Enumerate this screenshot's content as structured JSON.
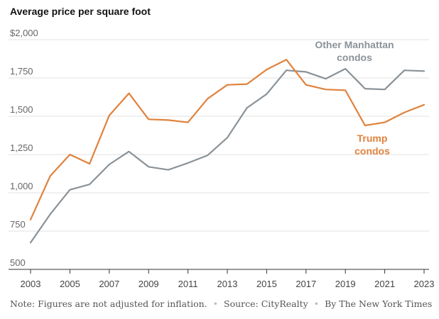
{
  "chart_data": {
    "type": "line",
    "title": "Average price per square foot",
    "x": [
      2003,
      2004,
      2005,
      2006,
      2007,
      2008,
      2009,
      2010,
      2011,
      2012,
      2013,
      2014,
      2015,
      2016,
      2017,
      2018,
      2019,
      2020,
      2021,
      2022,
      2023
    ],
    "series": [
      {
        "name": "Other Manhattan condos",
        "color": "#8a9298",
        "values": [
          675,
          860,
          1020,
          1055,
          1185,
          1270,
          1170,
          1150,
          1195,
          1245,
          1360,
          1555,
          1645,
          1800,
          1790,
          1745,
          1810,
          1680,
          1675,
          1800,
          1795
        ]
      },
      {
        "name": "Trump condos",
        "color": "#e0823c",
        "values": [
          825,
          1110,
          1250,
          1190,
          1505,
          1650,
          1480,
          1475,
          1460,
          1615,
          1705,
          1710,
          1805,
          1870,
          1705,
          1675,
          1670,
          1440,
          1460,
          1525,
          1575
        ]
      }
    ],
    "series_labels": [
      {
        "lines": [
          "Other Manhattan",
          "condos"
        ],
        "color": "#8a9298"
      },
      {
        "lines": [
          "Trump",
          "condos"
        ],
        "color": "#e0823c"
      }
    ],
    "ylim": [
      500,
      2000
    ],
    "yticks": [
      "500",
      "750",
      "1,000",
      "1,250",
      "1,500",
      "1,750",
      "$2,000"
    ],
    "ytick_values": [
      500,
      750,
      1000,
      1250,
      1500,
      1750,
      2000
    ],
    "xticks": [
      "2003",
      "2005",
      "2007",
      "2009",
      "2011",
      "2013",
      "2015",
      "2017",
      "2019",
      "2021",
      "2023"
    ],
    "grid": true
  },
  "footer": {
    "note": "Note: Figures are not adjusted for inflation.",
    "source": "Source: CityRealty",
    "byline": "By The New York Times"
  }
}
